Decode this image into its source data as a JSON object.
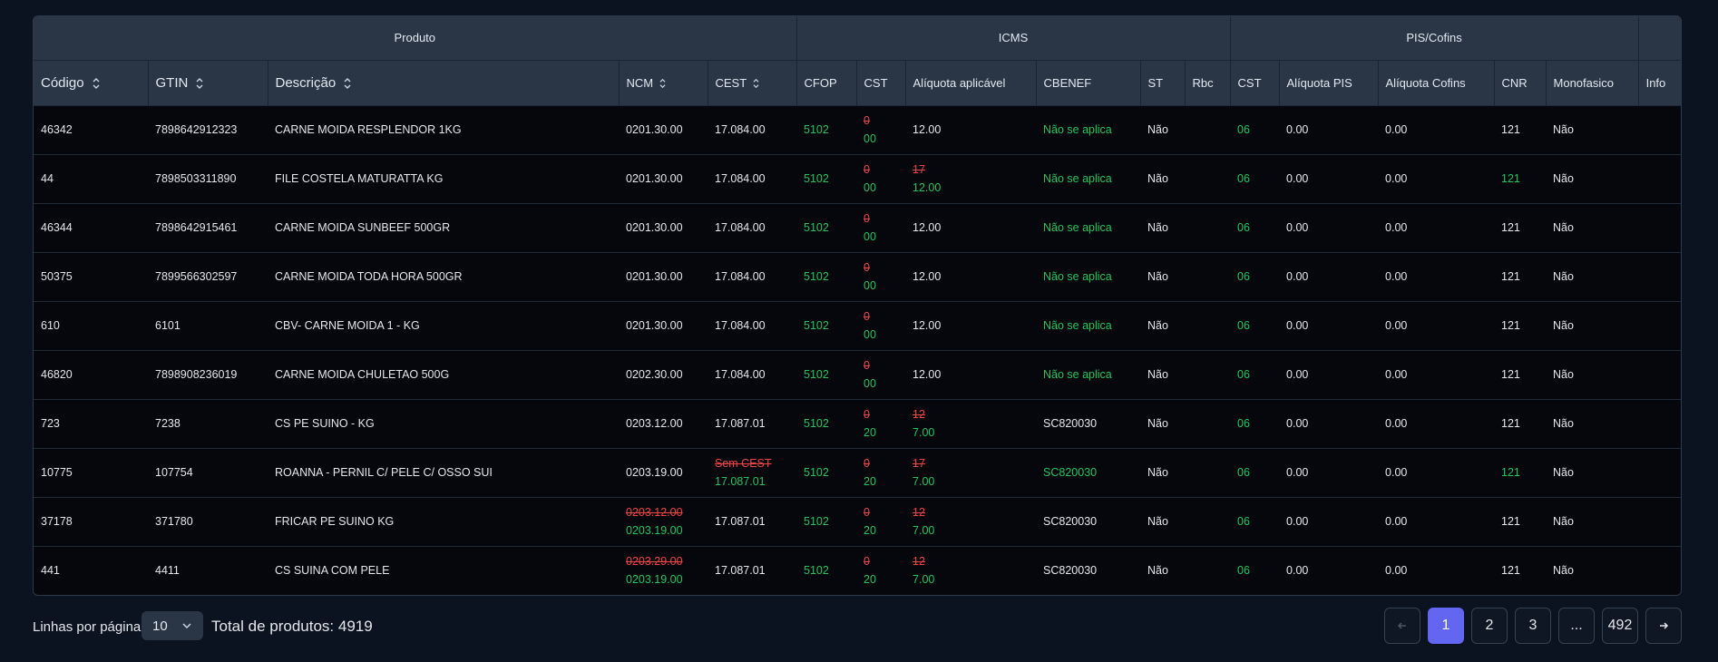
{
  "groups": {
    "produto": "Produto",
    "icms": "ICMS",
    "piscofins": "PIS/Cofins"
  },
  "columns": {
    "codigo": "Código",
    "gtin": "GTIN",
    "descricao": "Descrição",
    "ncm": "NCM",
    "cest": "CEST",
    "cfop": "CFOP",
    "cst": "CST",
    "aliquota_aplicavel": "Alíquota aplicável",
    "cbenef": "CBENEF",
    "st": "ST",
    "rbc": "Rbc",
    "pis_cst": "CST",
    "aliquota_pis": "Alíquota PIS",
    "aliquota_cofins": "Alíquota Cofins",
    "cnr": "CNR",
    "monofasico": "Monofasico",
    "info": "Info"
  },
  "rows": [
    {
      "codigo": "46342",
      "gtin": "7898642912323",
      "descricao": "CARNE MOIDA RESPLENDOR 1KG",
      "ncm_old": "",
      "ncm": "0201.30.00",
      "cest_old": "",
      "cest": "17.084.00",
      "cfop": "5102",
      "cst_old": "0",
      "cst": "00",
      "aliq_old": "",
      "aliq": "12.00",
      "cbenef": "Não se aplica",
      "cbenef_green": true,
      "st": "Não",
      "pis_cst": "06",
      "pis": "0.00",
      "cofins": "0.00",
      "cnr": "121",
      "cnr_green": false,
      "mono": "Não"
    },
    {
      "codigo": "44",
      "gtin": "7898503311890",
      "descricao": "FILE COSTELA MATURATTA KG",
      "ncm_old": "",
      "ncm": "0201.30.00",
      "cest_old": "",
      "cest": "17.084.00",
      "cfop": "5102",
      "cst_old": "0",
      "cst": "00",
      "aliq_old": "17",
      "aliq": "12.00",
      "cbenef": "Não se aplica",
      "cbenef_green": true,
      "st": "Não",
      "pis_cst": "06",
      "pis": "0.00",
      "cofins": "0.00",
      "cnr": "121",
      "cnr_green": true,
      "mono": "Não"
    },
    {
      "codigo": "46344",
      "gtin": "7898642915461",
      "descricao": "CARNE MOIDA SUNBEEF 500GR",
      "ncm_old": "",
      "ncm": "0201.30.00",
      "cest_old": "",
      "cest": "17.084.00",
      "cfop": "5102",
      "cst_old": "0",
      "cst": "00",
      "aliq_old": "",
      "aliq": "12.00",
      "cbenef": "Não se aplica",
      "cbenef_green": true,
      "st": "Não",
      "pis_cst": "06",
      "pis": "0.00",
      "cofins": "0.00",
      "cnr": "121",
      "cnr_green": false,
      "mono": "Não"
    },
    {
      "codigo": "50375",
      "gtin": "7899566302597",
      "descricao": "CARNE MOIDA TODA HORA 500GR",
      "ncm_old": "",
      "ncm": "0201.30.00",
      "cest_old": "",
      "cest": "17.084.00",
      "cfop": "5102",
      "cst_old": "0",
      "cst": "00",
      "aliq_old": "",
      "aliq": "12.00",
      "cbenef": "Não se aplica",
      "cbenef_green": true,
      "st": "Não",
      "pis_cst": "06",
      "pis": "0.00",
      "cofins": "0.00",
      "cnr": "121",
      "cnr_green": false,
      "mono": "Não"
    },
    {
      "codigo": "610",
      "gtin": "6101",
      "descricao": "CBV- CARNE MOIDA 1 - KG",
      "ncm_old": "",
      "ncm": "0201.30.00",
      "cest_old": "",
      "cest": "17.084.00",
      "cfop": "5102",
      "cst_old": "0",
      "cst": "00",
      "aliq_old": "",
      "aliq": "12.00",
      "cbenef": "Não se aplica",
      "cbenef_green": true,
      "st": "Não",
      "pis_cst": "06",
      "pis": "0.00",
      "cofins": "0.00",
      "cnr": "121",
      "cnr_green": false,
      "mono": "Não"
    },
    {
      "codigo": "46820",
      "gtin": "7898908236019",
      "descricao": "CARNE MOIDA CHULETAO 500G",
      "ncm_old": "",
      "ncm": "0202.30.00",
      "cest_old": "",
      "cest": "17.084.00",
      "cfop": "5102",
      "cst_old": "0",
      "cst": "00",
      "aliq_old": "",
      "aliq": "12.00",
      "cbenef": "Não se aplica",
      "cbenef_green": true,
      "st": "Não",
      "pis_cst": "06",
      "pis": "0.00",
      "cofins": "0.00",
      "cnr": "121",
      "cnr_green": false,
      "mono": "Não"
    },
    {
      "codigo": "723",
      "gtin": "7238",
      "descricao": "CS PE SUINO - KG",
      "ncm_old": "",
      "ncm": "0203.12.00",
      "cest_old": "",
      "cest": "17.087.01",
      "cfop": "5102",
      "cst_old": "0",
      "cst": "20",
      "aliq_old": "12",
      "aliq": "7.00",
      "cbenef": "SC820030",
      "cbenef_green": false,
      "st": "Não",
      "pis_cst": "06",
      "pis": "0.00",
      "cofins": "0.00",
      "cnr": "121",
      "cnr_green": false,
      "mono": "Não"
    },
    {
      "codigo": "10775",
      "gtin": "107754",
      "descricao": "ROANNA - PERNIL C/ PELE C/ OSSO SUI",
      "ncm_old": "",
      "ncm": "0203.19.00",
      "cest_old": "Sem CEST",
      "cest": "17.087.01",
      "cfop": "5102",
      "cst_old": "0",
      "cst": "20",
      "aliq_old": "17",
      "aliq": "7.00",
      "cbenef": "SC820030",
      "cbenef_green": true,
      "st": "Não",
      "pis_cst": "06",
      "pis": "0.00",
      "cofins": "0.00",
      "cnr": "121",
      "cnr_green": true,
      "mono": "Não"
    },
    {
      "codigo": "37178",
      "gtin": "371780",
      "descricao": "FRICAR PE SUINO KG",
      "ncm_old": "0203.12.00",
      "ncm": "0203.19.00",
      "cest_old": "",
      "cest": "17.087.01",
      "cfop": "5102",
      "cst_old": "0",
      "cst": "20",
      "aliq_old": "12",
      "aliq": "7.00",
      "cbenef": "SC820030",
      "cbenef_green": false,
      "st": "Não",
      "pis_cst": "06",
      "pis": "0.00",
      "cofins": "0.00",
      "cnr": "121",
      "cnr_green": false,
      "mono": "Não"
    },
    {
      "codigo": "441",
      "gtin": "4411",
      "descricao": "CS SUINA COM PELE",
      "ncm_old": "0203.29.00",
      "ncm": "0203.19.00",
      "cest_old": "",
      "cest": "17.087.01",
      "cfop": "5102",
      "cst_old": "0",
      "cst": "20",
      "aliq_old": "12",
      "aliq": "7.00",
      "cbenef": "SC820030",
      "cbenef_green": false,
      "st": "Não",
      "pis_cst": "06",
      "pis": "0.00",
      "cofins": "0.00",
      "cnr": "121",
      "cnr_green": false,
      "mono": "Não"
    }
  ],
  "footer": {
    "rows_label": "Linhas por página",
    "rows_value": "10",
    "total_label": "Total de produtos: 4919",
    "pages": [
      "1",
      "2",
      "3",
      "...",
      "492"
    ],
    "active_page": "1"
  },
  "colors": {
    "accent": "#6366f1",
    "changed_old": "#ef4444",
    "changed_new": "#22c55e"
  }
}
